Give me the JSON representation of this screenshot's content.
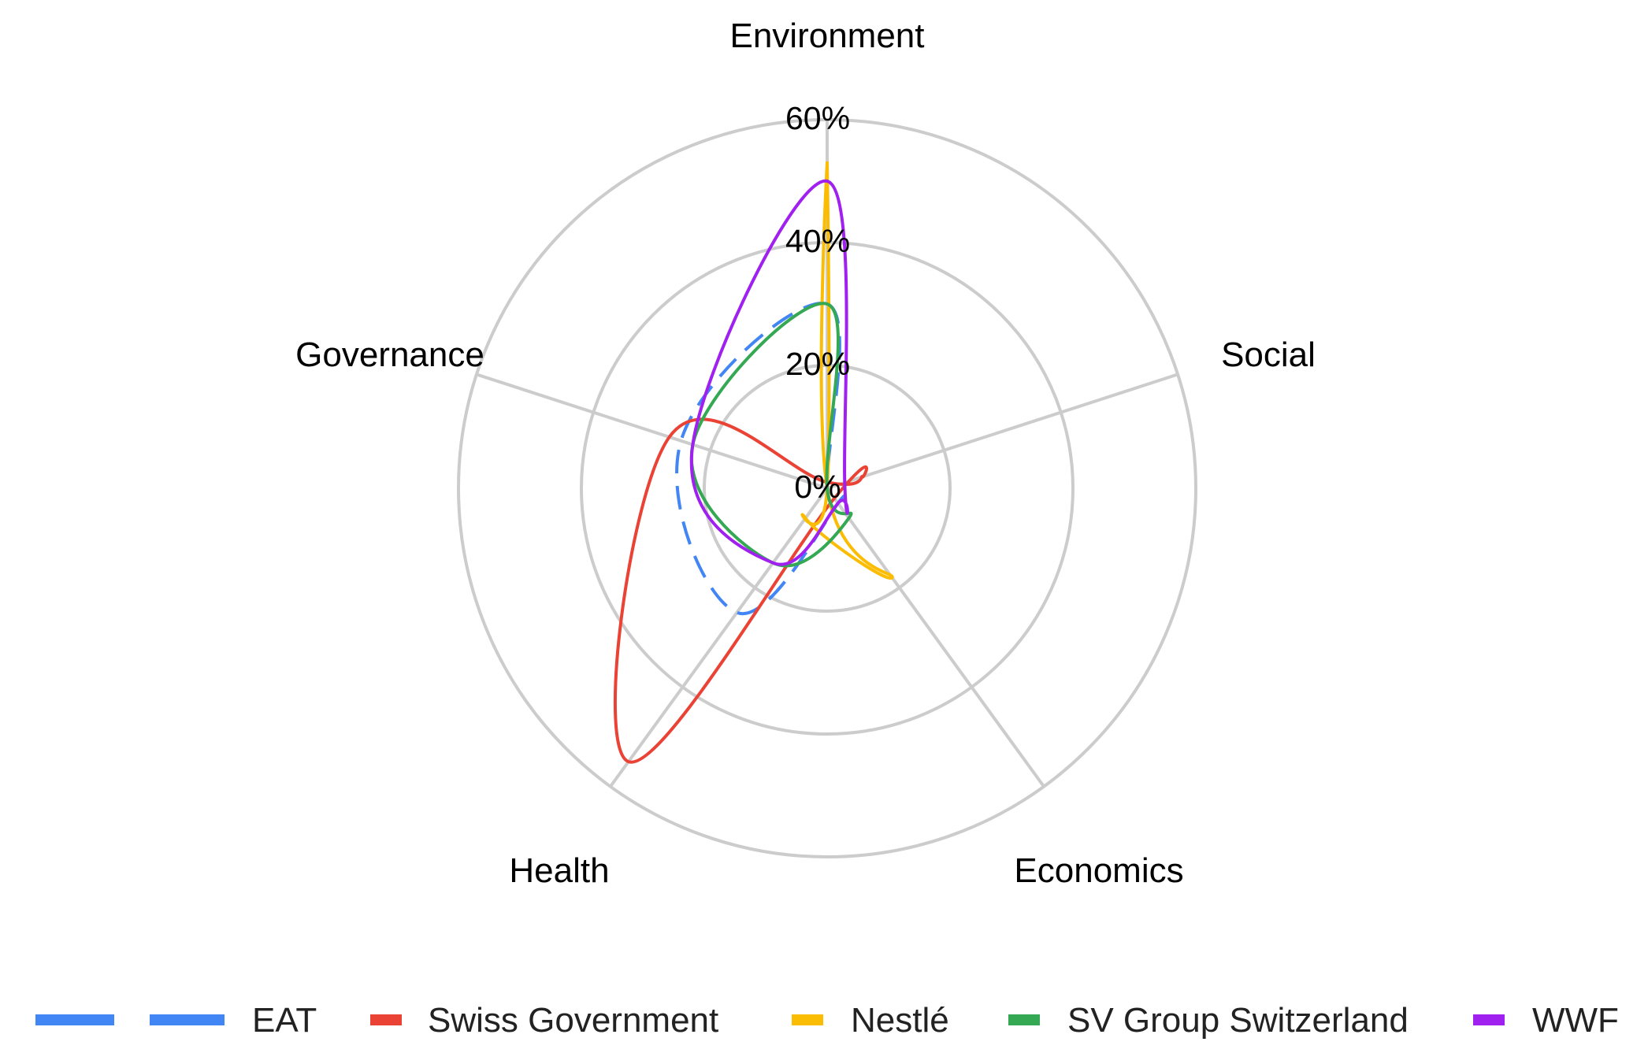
{
  "chart_data": {
    "type": "radar",
    "axes": [
      "Environment",
      "Social",
      "Economics",
      "Health",
      "Governance"
    ],
    "r_ticks": [
      "0%",
      "20%",
      "40%",
      "60%"
    ],
    "r_max": 60,
    "grid": true,
    "legend_position": "bottom",
    "series": [
      {
        "name": "EAT",
        "color": "#4285f4",
        "dash": "dashed",
        "values": [
          30,
          0,
          3,
          25,
          25
        ]
      },
      {
        "name": "Swiss Government",
        "color": "#ea4335",
        "dash": "solid",
        "values": [
          1,
          6,
          2,
          55,
          27
        ]
      },
      {
        "name": "Nestlé",
        "color": "#fbbc04",
        "dash": "solid",
        "values": [
          53,
          0,
          18,
          6,
          0
        ]
      },
      {
        "name": "SV Group Switzerland",
        "color": "#34a853",
        "dash": "solid",
        "values": [
          30,
          0,
          6,
          15,
          23
        ]
      },
      {
        "name": "WWF",
        "color": "#a020f0",
        "dash": "solid",
        "values": [
          50,
          3,
          3,
          15,
          23
        ]
      }
    ]
  }
}
